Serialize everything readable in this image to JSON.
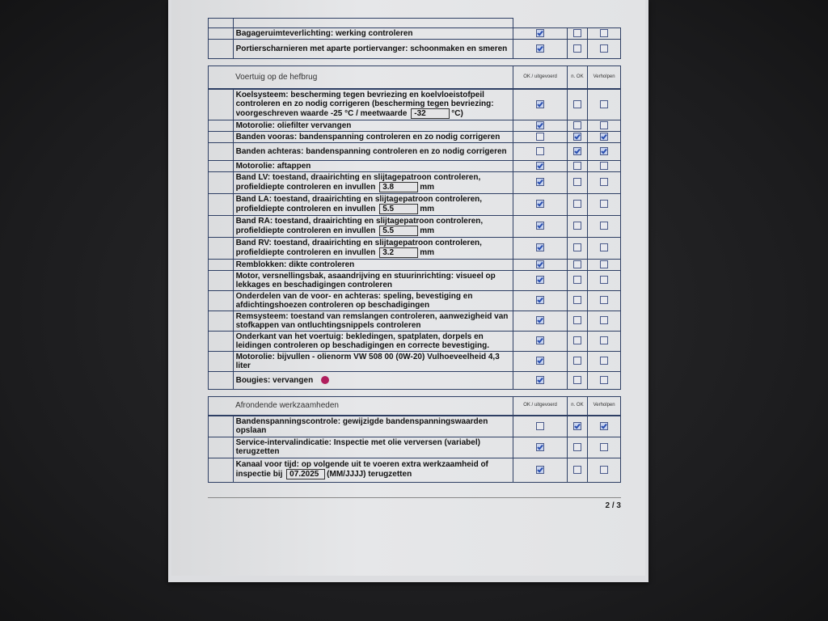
{
  "columns": {
    "ok": "OK / uitgevoerd",
    "nok": "n. OK",
    "fixed": "Verholpen"
  },
  "top_rows": [
    {
      "text": "Bagageruimteverlichting: werking controleren",
      "checks": [
        true,
        false,
        false
      ]
    },
    {
      "text": "Portierscharnieren met aparte portiervanger: schoonmaken en smeren",
      "checks": [
        true,
        false,
        false
      ]
    }
  ],
  "section_lift": {
    "title": "Voertuig op de hefbrug",
    "rows": [
      {
        "text": "Koelsysteem: bescherming tegen bevriezing en koelvloeistofpeil controleren en zo nodig corrigeren (bescherming tegen bevriezing: voorgeschreven waarde -25 °C / meetwaarde",
        "field": "-32",
        "suffix": "°C)",
        "checks": [
          true,
          false,
          false
        ]
      },
      {
        "text": "Motorolie: oliefilter vervangen",
        "checks": [
          true,
          false,
          false
        ]
      },
      {
        "text": "Banden vooras: bandenspanning controleren en zo nodig corrigeren",
        "checks": [
          false,
          true,
          true
        ]
      },
      {
        "text": "Banden achteras: bandenspanning controleren en zo nodig corrigeren",
        "checks": [
          false,
          true,
          true
        ]
      },
      {
        "text": "Motorolie: aftappen",
        "checks": [
          true,
          false,
          false
        ]
      },
      {
        "text": "Band LV: toestand, draairichting en slijtagepatroon controleren, profieldiepte controleren en invullen",
        "field": "3.8",
        "suffix": "mm",
        "checks": [
          true,
          false,
          false
        ]
      },
      {
        "text": "Band LA: toestand, draairichting en slijtagepatroon controleren, profieldiepte controleren en invullen",
        "field": "5.5",
        "suffix": "mm",
        "checks": [
          true,
          false,
          false
        ]
      },
      {
        "text": "Band RA: toestand, draairichting en slijtagepatroon controleren, profieldiepte controleren en invullen",
        "field": "5.5",
        "suffix": "mm",
        "checks": [
          true,
          false,
          false
        ]
      },
      {
        "text": "Band RV: toestand, draairichting en slijtagepatroon controleren, profieldiepte controleren en invullen",
        "field": "3.2",
        "suffix": "mm",
        "checks": [
          true,
          false,
          false
        ]
      },
      {
        "text": "Remblokken: dikte controleren",
        "checks": [
          true,
          false,
          false
        ]
      },
      {
        "text": "Motor, versnellingsbak, asaandrijving en stuurinrichting: visueel op lekkages en beschadigingen controleren",
        "checks": [
          true,
          false,
          false
        ]
      },
      {
        "text": "Onderdelen van de voor- en achteras: speling, bevestiging en afdichtingshoezen controleren op beschadigingen",
        "checks": [
          true,
          false,
          false
        ]
      },
      {
        "text": "Remsysteem: toestand van remslangen controleren, aanwezigheid van stofkappen van ontluchtingsnippels controleren",
        "checks": [
          true,
          false,
          false
        ]
      },
      {
        "text": "Onderkant van het voertuig: bekledingen, spatplaten, dorpels en leidingen controleren op beschadigingen en correcte bevestiging.",
        "checks": [
          true,
          false,
          false
        ]
      },
      {
        "text": "Motorolie: bijvullen - olienorm VW 508 00 (0W-20) Vulhoeveelheid 4,3 liter",
        "checks": [
          true,
          false,
          false
        ]
      },
      {
        "text": "Bougies: vervangen",
        "marker": "magenta-dot",
        "checks": [
          true,
          false,
          false
        ]
      }
    ]
  },
  "section_final": {
    "title": "Afrondende werkzaamheden",
    "rows": [
      {
        "text": "Bandenspanningscontrole: gewijzigde bandenspanningswaarden opslaan",
        "checks": [
          false,
          true,
          true
        ]
      },
      {
        "text": "Service-intervalindicatie: Inspectie met olie verversen (variabel) terugzetten",
        "checks": [
          true,
          false,
          false
        ]
      },
      {
        "text": "Kanaal voor tijd: op volgende uit te voeren extra werkzaamheid of inspectie bij",
        "field": "07.2025",
        "suffix": "(MM/JJJJ) terugzetten",
        "checks": [
          true,
          false,
          false
        ]
      }
    ]
  },
  "footer": {
    "page": "2 / 3"
  },
  "colors": {
    "table_border": "#2e3f64",
    "check": "#2a4fb0",
    "marker": "#b01f5e"
  }
}
